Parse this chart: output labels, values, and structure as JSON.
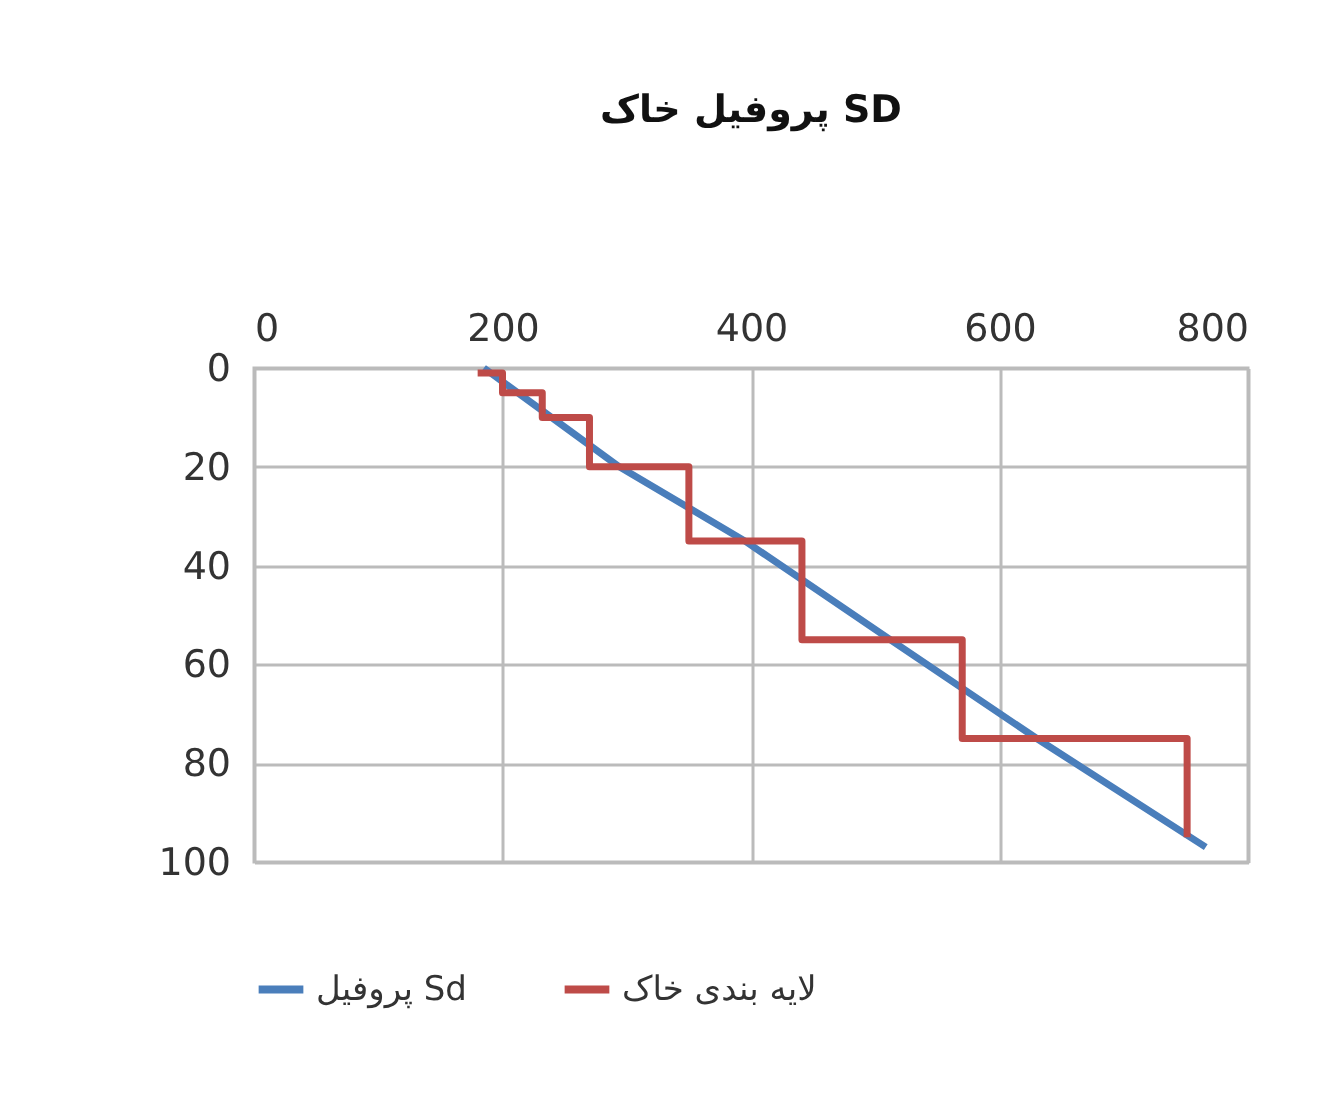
{
  "chart_data": {
    "type": "line",
    "title": "پروفیل خاک SD",
    "xlim": [
      0,
      800
    ],
    "xticks": [
      0,
      200,
      400,
      600,
      800
    ],
    "ylim": [
      100,
      0
    ],
    "yticks": [
      0,
      20,
      40,
      60,
      80,
      100
    ],
    "grid": true,
    "legend": "bottom",
    "marker": "none",
    "series": [
      {
        "name": "پروفیل Sd",
        "color": "#4a7ebb",
        "x": [
          185,
          294,
          395,
          512,
          630,
          766
        ],
        "values": [
          0,
          20,
          35,
          55,
          75,
          97
        ]
      },
      {
        "name": "لایه بندی خاک",
        "color": "#be4b48",
        "x": [
          180,
          200,
          200,
          232,
          232,
          270,
          270,
          350,
          350,
          441,
          441,
          570,
          570,
          751,
          751
        ],
        "values": [
          1,
          1,
          5,
          5,
          10,
          10,
          20,
          20,
          35,
          35,
          55,
          55,
          75,
          75,
          95
        ]
      }
    ]
  }
}
